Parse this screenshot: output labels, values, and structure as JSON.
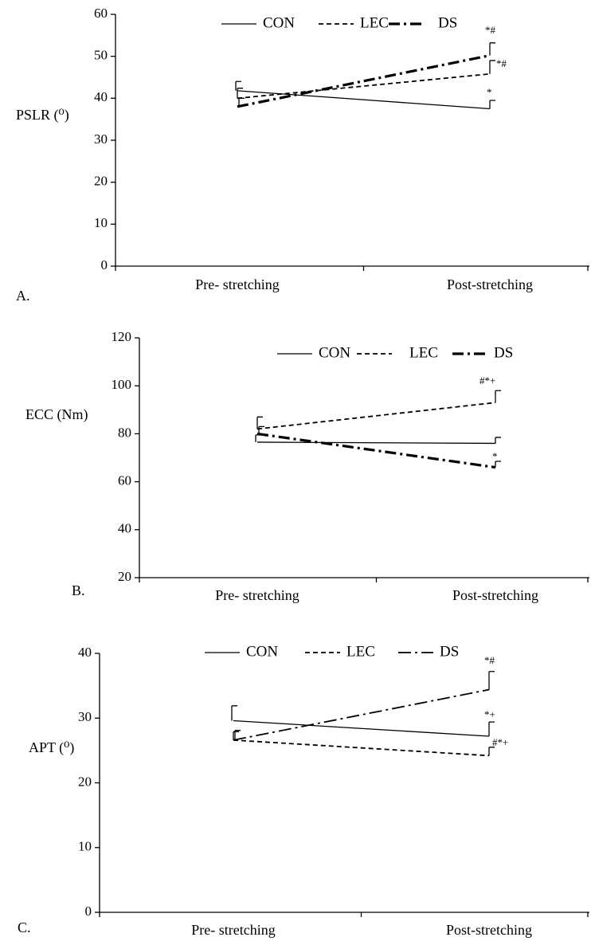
{
  "chart_data": [
    {
      "type": "line",
      "panel_label": "A.",
      "ylabel": "PSLR (⁰)",
      "categories": [
        "Pre- stretching",
        "Post-stretching"
      ],
      "ylim": [
        0,
        60
      ],
      "yticks": [
        0,
        10,
        20,
        30,
        40,
        50,
        60
      ],
      "legend_position": "top-center",
      "series": [
        {
          "name": "CON",
          "style": "solid",
          "values": [
            41.8,
            37.5
          ],
          "errors": [
            2.2,
            2.0
          ]
        },
        {
          "name": "LEC",
          "style": "dashed",
          "values": [
            40.0,
            45.8
          ],
          "errors": [
            2.4,
            3.2
          ]
        },
        {
          "name": "DS",
          "style": "dashdot-bold",
          "values": [
            38.0,
            50.2
          ],
          "errors": [
            2.0,
            3.0
          ]
        }
      ],
      "annotations": [
        {
          "text": "*#",
          "series": "DS"
        },
        {
          "text": "*#",
          "series": "LEC"
        },
        {
          "text": "*",
          "series": "CON"
        }
      ]
    },
    {
      "type": "line",
      "panel_label": "B.",
      "ylabel": "ECC (Nm)",
      "categories": [
        "Pre- stretching",
        "Post-stretching"
      ],
      "ylim": [
        20,
        120
      ],
      "yticks": [
        20,
        40,
        60,
        80,
        100,
        120
      ],
      "legend_position": "top-center",
      "series": [
        {
          "name": "CON",
          "style": "solid",
          "values": [
            76.5,
            76.0
          ],
          "errors": [
            3.0,
            2.5
          ]
        },
        {
          "name": "LEC",
          "style": "dashed",
          "values": [
            82.0,
            93.0
          ],
          "errors": [
            5.0,
            5.0
          ]
        },
        {
          "name": "DS",
          "style": "dashdot-bold",
          "values": [
            80.0,
            66.0
          ],
          "errors": [
            3.0,
            2.5
          ]
        }
      ],
      "annotations": [
        {
          "text": "#*+",
          "series": "LEC"
        },
        {
          "text": "*",
          "series": "DS"
        }
      ]
    },
    {
      "type": "line",
      "panel_label": "C.",
      "ylabel": "APT (⁰)",
      "categories": [
        "Pre- stretching",
        "Post-stretching"
      ],
      "ylim": [
        0,
        40
      ],
      "yticks": [
        0,
        10,
        20,
        30,
        40
      ],
      "legend_position": "top-center",
      "series": [
        {
          "name": "CON",
          "style": "solid",
          "values": [
            29.6,
            27.2
          ],
          "errors": [
            2.3,
            2.2
          ]
        },
        {
          "name": "LEC",
          "style": "dashed",
          "values": [
            26.6,
            24.2
          ],
          "errors": [
            1.3,
            1.3
          ]
        },
        {
          "name": "DS",
          "style": "longdashdot",
          "values": [
            26.6,
            34.4
          ],
          "errors": [
            1.5,
            2.8
          ]
        }
      ],
      "annotations": [
        {
          "text": "*#",
          "series": "DS"
        },
        {
          "text": "*+",
          "series": "CON"
        },
        {
          "text": "#*+",
          "series": "LEC"
        }
      ]
    }
  ]
}
